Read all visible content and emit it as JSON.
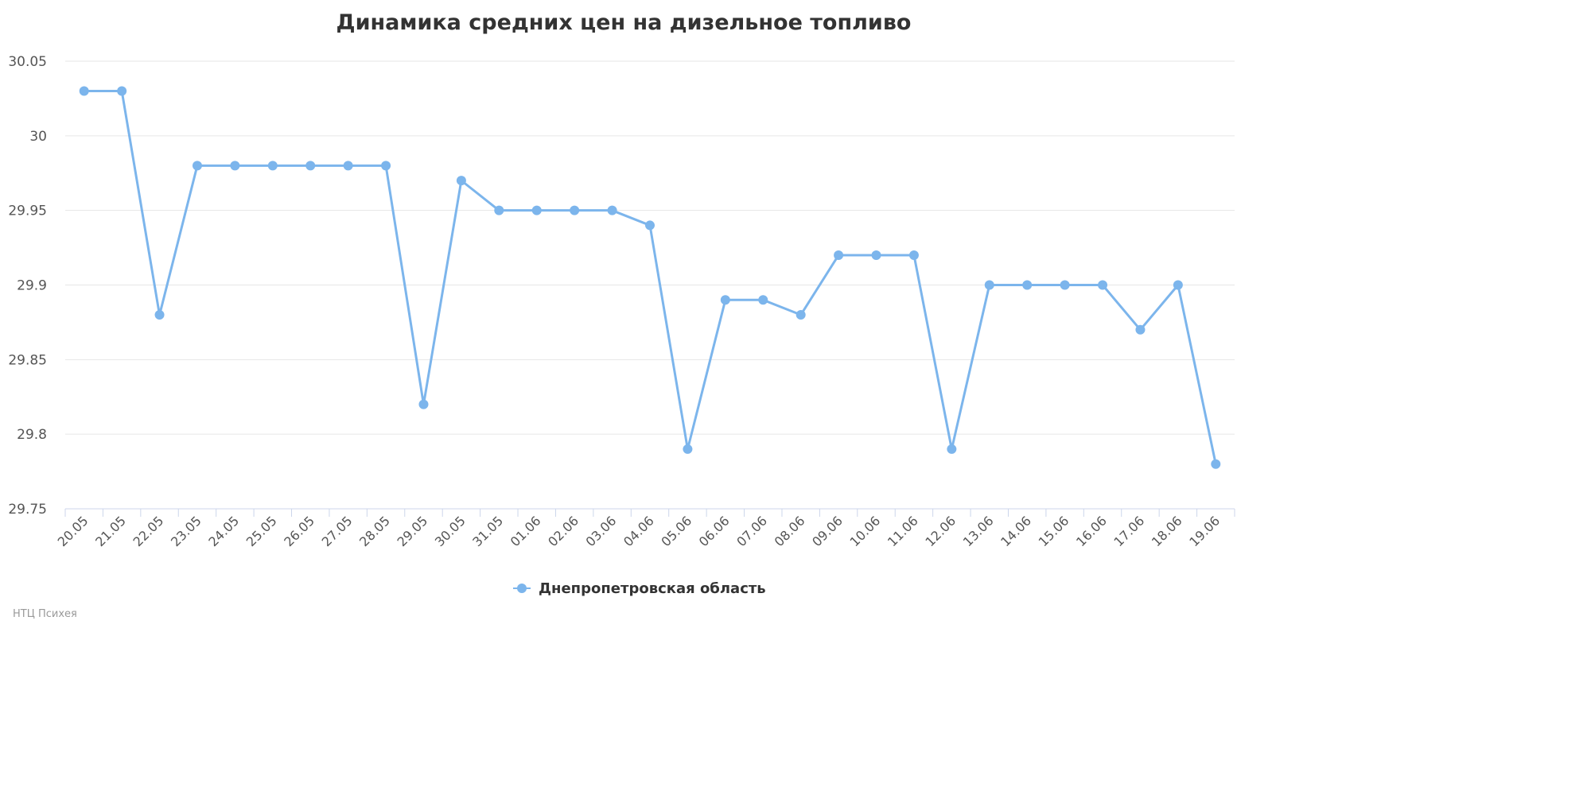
{
  "chart_data": {
    "type": "line",
    "title": "Динамика средних цен на дизельное топливо",
    "xlabel": "",
    "ylabel": "",
    "categories": [
      "20.05",
      "21.05",
      "22.05",
      "23.05",
      "24.05",
      "25.05",
      "26.05",
      "27.05",
      "28.05",
      "29.05",
      "30.05",
      "31.05",
      "01.06",
      "02.06",
      "03.06",
      "04.06",
      "05.06",
      "06.06",
      "07.06",
      "08.06",
      "09.06",
      "10.06",
      "11.06",
      "12.06",
      "13.06",
      "14.06",
      "15.06",
      "16.06",
      "17.06",
      "18.06",
      "19.06"
    ],
    "series": [
      {
        "name": "Днепропетровская область",
        "color": "#7cb5ec",
        "values": [
          30.03,
          30.03,
          29.88,
          29.98,
          29.98,
          29.98,
          29.98,
          29.98,
          29.98,
          29.82,
          29.97,
          29.95,
          29.95,
          29.95,
          29.95,
          29.94,
          29.79,
          29.89,
          29.89,
          29.88,
          29.92,
          29.92,
          29.92,
          29.79,
          29.9,
          29.9,
          29.9,
          29.9,
          29.87,
          29.9,
          29.78
        ]
      }
    ],
    "ylim": [
      29.75,
      30.05
    ],
    "y_ticks": [
      "29.75",
      "29.8",
      "29.85",
      "29.9",
      "29.95",
      "30",
      "30.05"
    ],
    "grid": true,
    "legend_position": "bottom-center"
  },
  "credits": "НТЦ Психея"
}
